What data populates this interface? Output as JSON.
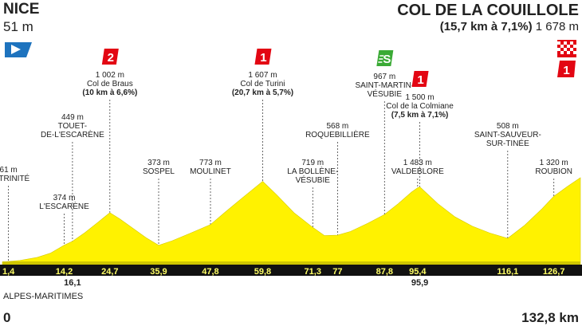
{
  "start": {
    "name": "NICE",
    "altitude": "51 m"
  },
  "finish": {
    "name": "COL DE LA COUILLOLE",
    "climb": "(15,7 km à 7,1%)",
    "altitude": "1 678 m"
  },
  "department": "ALPES-MARITIMES",
  "distance_start": "0",
  "distance_end": "132,8 km",
  "colors": {
    "profile": "#fff200",
    "band": "#111111",
    "cat1": "#e30613",
    "cat2": "#e30613",
    "sprint": "#3aaa35",
    "start_flag": "#1e73be"
  },
  "chart_data": {
    "type": "area",
    "x_unit": "km",
    "y_unit": "m",
    "xlim": [
      0,
      132.8
    ],
    "ylim": [
      0,
      1800
    ],
    "profile": [
      {
        "x": 0,
        "y": 51
      },
      {
        "x": 4,
        "y": 80
      },
      {
        "x": 8,
        "y": 140
      },
      {
        "x": 11,
        "y": 220
      },
      {
        "x": 14.2,
        "y": 374
      },
      {
        "x": 16.1,
        "y": 449
      },
      {
        "x": 19,
        "y": 620
      },
      {
        "x": 22,
        "y": 820
      },
      {
        "x": 24.7,
        "y": 1002
      },
      {
        "x": 27,
        "y": 880
      },
      {
        "x": 30,
        "y": 700
      },
      {
        "x": 33,
        "y": 520
      },
      {
        "x": 35.9,
        "y": 373
      },
      {
        "x": 39,
        "y": 460
      },
      {
        "x": 43,
        "y": 600
      },
      {
        "x": 47.8,
        "y": 773
      },
      {
        "x": 51,
        "y": 1000
      },
      {
        "x": 55,
        "y": 1280
      },
      {
        "x": 59.8,
        "y": 1607
      },
      {
        "x": 63,
        "y": 1350
      },
      {
        "x": 67,
        "y": 1000
      },
      {
        "x": 71.3,
        "y": 719
      },
      {
        "x": 74,
        "y": 560
      },
      {
        "x": 77,
        "y": 568
      },
      {
        "x": 80,
        "y": 640
      },
      {
        "x": 84,
        "y": 800
      },
      {
        "x": 87.8,
        "y": 967
      },
      {
        "x": 91,
        "y": 1180
      },
      {
        "x": 94,
        "y": 1400
      },
      {
        "x": 95.4,
        "y": 1483
      },
      {
        "x": 95.9,
        "y": 1500
      },
      {
        "x": 100,
        "y": 1180
      },
      {
        "x": 104,
        "y": 920
      },
      {
        "x": 108,
        "y": 740
      },
      {
        "x": 112,
        "y": 610
      },
      {
        "x": 116.1,
        "y": 508
      },
      {
        "x": 120,
        "y": 760
      },
      {
        "x": 124,
        "y": 1080
      },
      {
        "x": 126.7,
        "y": 1320
      },
      {
        "x": 130,
        "y": 1520
      },
      {
        "x": 132.8,
        "y": 1678
      }
    ],
    "km_ticks": [
      {
        "x": 1.4,
        "label": "1,4",
        "row": 1
      },
      {
        "x": 14.2,
        "label": "14,2",
        "row": 1
      },
      {
        "x": 16.1,
        "label": "16,1",
        "row": 2
      },
      {
        "x": 24.7,
        "label": "24,7",
        "row": 1
      },
      {
        "x": 35.9,
        "label": "35,9",
        "row": 1
      },
      {
        "x": 47.8,
        "label": "47,8",
        "row": 1
      },
      {
        "x": 59.8,
        "label": "59,8",
        "row": 1
      },
      {
        "x": 71.3,
        "label": "71,3",
        "row": 1
      },
      {
        "x": 77,
        "label": "77",
        "row": 1
      },
      {
        "x": 87.8,
        "label": "87,8",
        "row": 1
      },
      {
        "x": 95.4,
        "label": "95,4",
        "row": 1
      },
      {
        "x": 95.9,
        "label": "95,9",
        "row": 2
      },
      {
        "x": 116.1,
        "label": "116,1",
        "row": 1
      },
      {
        "x": 126.7,
        "label": "126,7",
        "row": 1
      }
    ],
    "waypoints": [
      {
        "x": 1.4,
        "alt": "61 m",
        "name": [
          "LA TRINITÉ"
        ],
        "line_top": 233
      },
      {
        "x": 14.2,
        "alt": "374 m",
        "name": [
          "L'ESCARÈNE"
        ],
        "line_top": 268
      },
      {
        "x": 16.1,
        "alt": "449 m",
        "name": [
          "TOUET-",
          "DE-L'ESCARÈNE"
        ],
        "line_top": 178
      },
      {
        "x": 24.7,
        "alt": "1 002 m",
        "name": [
          "Col de Braus",
          "(10 km à 6,6%)"
        ],
        "line_top": 125,
        "category": "2"
      },
      {
        "x": 35.9,
        "alt": "373 m",
        "name": [
          "SOSPEL"
        ],
        "line_top": 224
      },
      {
        "x": 47.8,
        "alt": "773 m",
        "name": [
          "MOULINET"
        ],
        "line_top": 224
      },
      {
        "x": 59.8,
        "alt": "1 607 m",
        "name": [
          "Col de Turini",
          "(20,7 km à 5,7%)"
        ],
        "line_top": 125,
        "category": "1"
      },
      {
        "x": 71.3,
        "alt": "719 m",
        "name": [
          "LA BOLLÈNE-",
          "VÉSUBIE"
        ],
        "line_top": 235
      },
      {
        "x": 77,
        "alt": "568 m",
        "name": [
          "ROQUEBILLIÈRE"
        ],
        "line_top": 178
      },
      {
        "x": 87.8,
        "alt": "967 m",
        "name": [
          "SAINT-MARTIN-",
          "VÉSUBIE"
        ],
        "line_top": 127,
        "category": "S"
      },
      {
        "x": 95.4,
        "alt": "1 483 m",
        "name": [
          "VALDEBLORE"
        ],
        "line_top": 224
      },
      {
        "x": 95.9,
        "alt": "1 500 m",
        "name": [
          "Col de la Colmiane",
          "(7,5 km à 7,1%)"
        ],
        "line_top": 153,
        "category": "1"
      },
      {
        "x": 116.1,
        "alt": "508 m",
        "name": [
          "SAINT-SAUVEUR-",
          "SUR-TINÉE"
        ],
        "line_top": 189
      },
      {
        "x": 126.7,
        "alt": "1 320 m",
        "name": [
          "ROUBION"
        ],
        "line_top": 224
      }
    ],
    "finish_category": "1"
  }
}
